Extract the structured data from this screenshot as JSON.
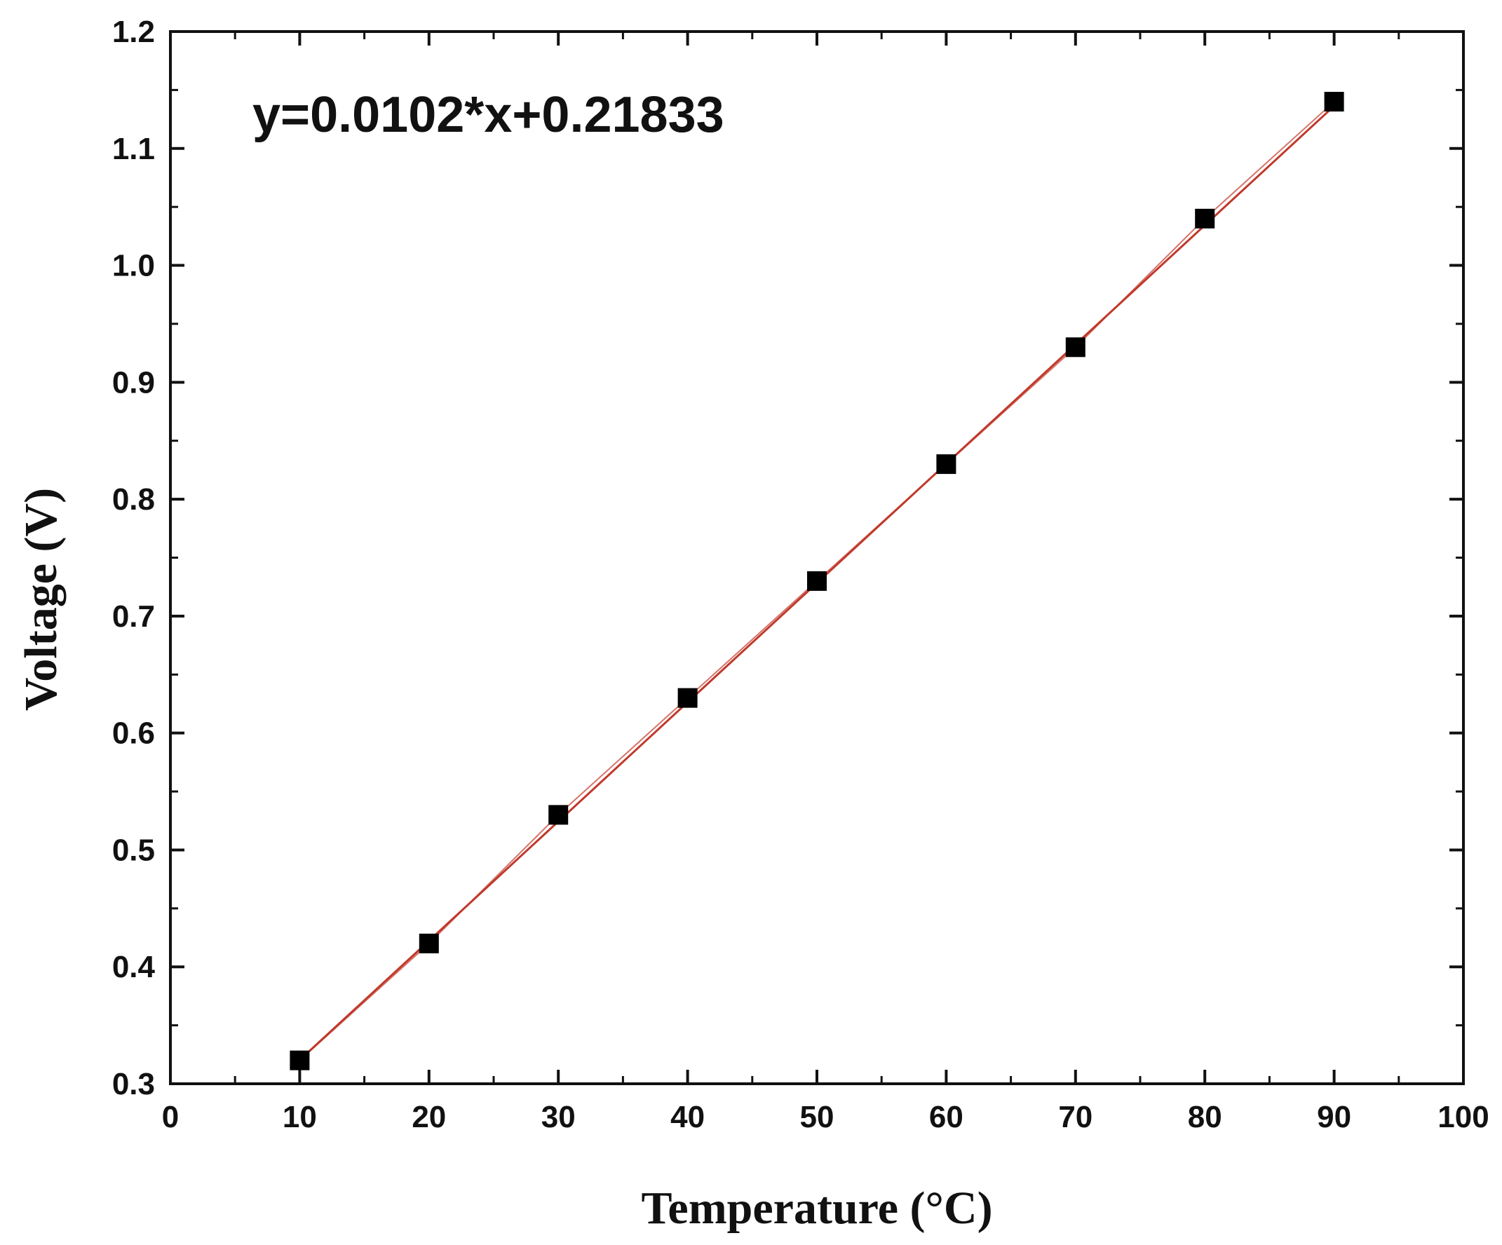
{
  "chart_data": {
    "type": "scatter",
    "title": "",
    "xlabel": "Temperature (°C)",
    "ylabel": "Voltage (V)",
    "xlim": [
      0,
      100
    ],
    "ylim": [
      0.3,
      1.2
    ],
    "x_ticks": [
      "0",
      "10",
      "20",
      "30",
      "40",
      "50",
      "60",
      "70",
      "80",
      "90",
      "100"
    ],
    "y_ticks": [
      "0.3",
      "0.4",
      "0.5",
      "0.6",
      "0.7",
      "0.8",
      "0.9",
      "1.0",
      "1.1",
      "1.2"
    ],
    "grid": false,
    "legend": "none",
    "annotation": "y=0.0102*x+0.21833",
    "series": [
      {
        "marker": "square",
        "color": "#000000",
        "x": [
          10,
          20,
          30,
          40,
          50,
          60,
          70,
          80,
          90
        ],
        "y": [
          0.32,
          0.42,
          0.53,
          0.63,
          0.73,
          0.83,
          0.93,
          1.04,
          1.14
        ]
      }
    ],
    "fit_line": {
      "slope": 0.0102,
      "intercept": 0.21833,
      "x_range": [
        10,
        90
      ],
      "color": "#c0392b"
    }
  }
}
